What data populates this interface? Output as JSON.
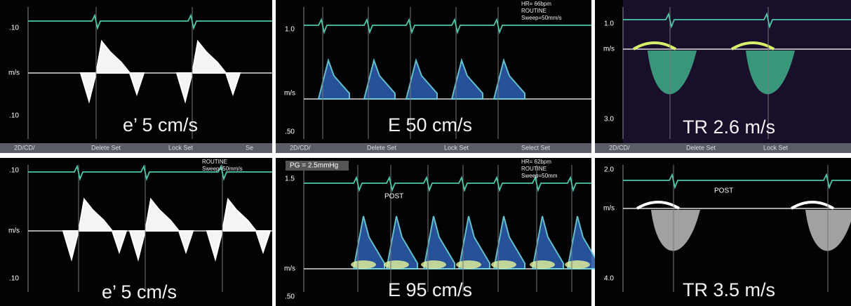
{
  "panels": [
    {
      "scale": {
        "top": ".10",
        "unit": "m/s",
        "bottom": ".10"
      },
      "measurement": "e’ 5 cm/s",
      "header": [],
      "menu": [
        "2D/CD/",
        "Delete Set",
        "Lock Set",
        "Se"
      ],
      "annotations": []
    },
    {
      "scale": {
        "top": "1.0",
        "unit": "m/s",
        "bottom": ".50"
      },
      "measurement": "E  50 cm/s",
      "header": [
        "HR= 66bpm",
        "ROUTINE",
        "Sweep=50mm/s"
      ],
      "menu": [
        "2D/CD/",
        "Delete Set",
        "Lock Set",
        "Select Set"
      ],
      "annotations": []
    },
    {
      "scale": {
        "top": "1.0",
        "unit": "m/s",
        "bottom": "3.0"
      },
      "measurement": "TR  2.6 m/s",
      "header": [],
      "menu": [
        "2D/CD/",
        "Delete Set",
        "Lock Set"
      ],
      "annotations": []
    },
    {
      "scale": {
        "top": ".10",
        "unit": "m/s",
        "bottom": ".10"
      },
      "measurement": "e’ 5 cm/s",
      "header": [
        "ROUTINE",
        "Sweep=50mm/s"
      ],
      "menu": [],
      "annotations": []
    },
    {
      "scale": {
        "top": "1.5",
        "unit": "m/s",
        "bottom": ".50"
      },
      "measurement": "E  95 cm/s",
      "header": [
        "HR= 62bpm",
        "ROUTINE",
        "Sweep=50mm"
      ],
      "menu": [],
      "annotations": [
        "PG = 2.5mmHg",
        "POST"
      ]
    },
    {
      "scale": {
        "top": "2.0",
        "unit": "m/s",
        "bottom": "4.0"
      },
      "measurement": "TR  3.5 m/s",
      "header": [],
      "menu": [],
      "annotations": [
        "POST"
      ]
    }
  ]
}
